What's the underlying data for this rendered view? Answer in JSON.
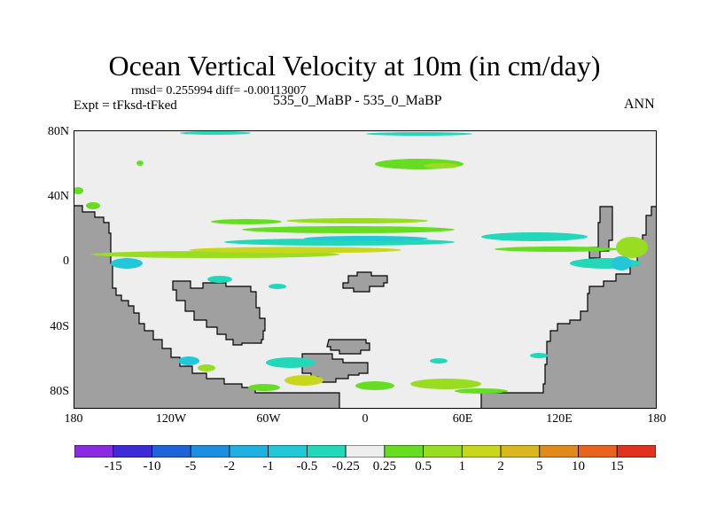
{
  "title": "Ocean Vertical Velocity at 10m (in cm/day)",
  "stats": "rmsd= 0.255994 diff= -0.00113007",
  "expt": "Expt = tFksd-tFked",
  "case_label": "535_0_MaBP - 535_0_MaBP",
  "season": "ANN",
  "y_ticks": [
    "80N",
    "40N",
    "0",
    "40S",
    "80S"
  ],
  "x_ticks": [
    "180",
    "120W",
    "60W",
    "0",
    "60E",
    "120E",
    "180"
  ],
  "colorbar": {
    "labels": [
      "-15",
      "-10",
      "-5",
      "-2",
      "-1",
      "-0.5",
      "-0.25",
      "0.25",
      "0.5",
      "1",
      "2",
      "5",
      "10",
      "15"
    ],
    "colors": [
      "#8a2be2",
      "#3d2bd8",
      "#1e64d8",
      "#1e8fe0",
      "#22b0e0",
      "#22c8d8",
      "#22d8b8",
      "#eeeeee",
      "#66dd22",
      "#99dd22",
      "#c8d61e",
      "#d8b81e",
      "#e08a1e",
      "#e8641e",
      "#e0321e"
    ]
  },
  "colors": {
    "land": "#a0a0a0",
    "ocean": "#eeeeee"
  }
}
